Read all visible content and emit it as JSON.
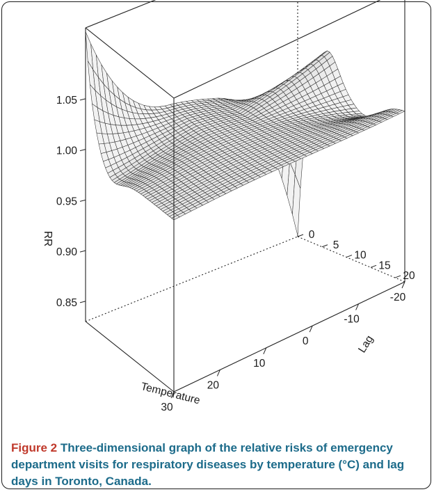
{
  "chart_data": {
    "type": "surface",
    "zlabel": "RR",
    "xlabel": "Temperature",
    "ylabel": "Lag",
    "z_ticks": [
      "0.85",
      "0.90",
      "0.95",
      "1.00",
      "1.05"
    ],
    "z_tick_values": [
      0.85,
      0.9,
      0.95,
      1.0,
      1.05
    ],
    "x_ticks": [
      "30",
      "20",
      "10",
      "0",
      "-10",
      "-20"
    ],
    "x_tick_values": [
      30,
      20,
      10,
      0,
      -10,
      -20
    ],
    "y_ticks": [
      "0",
      "5",
      "10",
      "15",
      "20"
    ],
    "y_tick_values": [
      0,
      5,
      10,
      15,
      20
    ],
    "xlim": [
      -20,
      30
    ],
    "ylim": [
      0,
      22
    ],
    "zlim": [
      0.83,
      1.12
    ],
    "surface_description_points": [
      {
        "temperature": 30,
        "lag": 0,
        "rr": 1.12
      },
      {
        "temperature": 30,
        "lag": 22,
        "rr": 1.01
      },
      {
        "temperature": -20,
        "lag": 0,
        "rr": 0.84
      },
      {
        "temperature": -20,
        "lag": 22,
        "rr": 0.97
      },
      {
        "temperature": 0,
        "lag": 11,
        "rr": 0.99
      }
    ]
  },
  "caption": {
    "label": "Figure 2",
    "text": " Three-dimensional graph of the relative risks of emergency department visits for respiratory diseases by temperature (°C) and lag days in Toronto, Canada."
  }
}
